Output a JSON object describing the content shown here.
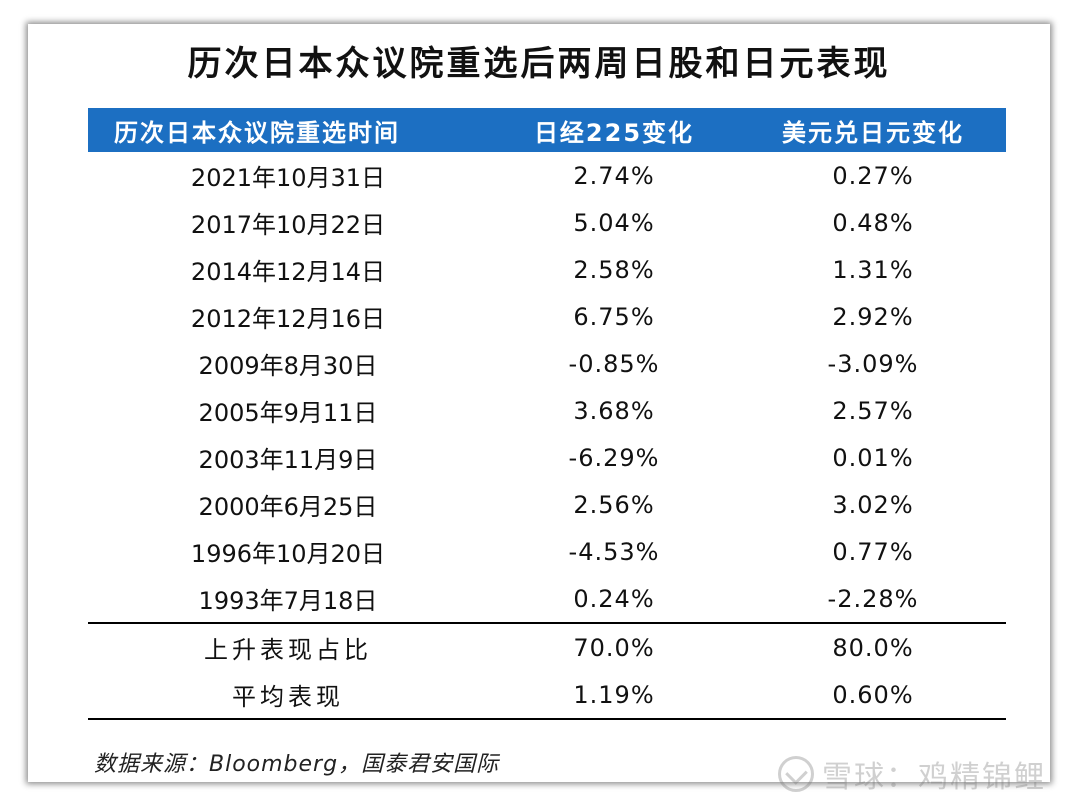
{
  "title": "历次日本众议院重选后两周日股和日元表现",
  "table": {
    "headers": [
      "历次日本众议院重选时间",
      "日经225变化",
      "美元兑日元变化"
    ],
    "rows": [
      [
        "2021年10月31日",
        "2.74%",
        "0.27%"
      ],
      [
        "2017年10月22日",
        "5.04%",
        "0.48%"
      ],
      [
        "2014年12月14日",
        "2.58%",
        "1.31%"
      ],
      [
        "2012年12月16日",
        "6.75%",
        "2.92%"
      ],
      [
        "2009年8月30日",
        "-0.85%",
        "-3.09%"
      ],
      [
        "2005年9月11日",
        "3.68%",
        "2.57%"
      ],
      [
        "2003年11月9日",
        "-6.29%",
        "0.01%"
      ],
      [
        "2000年6月25日",
        "2.56%",
        "3.02%"
      ],
      [
        "1996年10月20日",
        "-4.53%",
        "0.77%"
      ],
      [
        "1993年7月18日",
        "0.24%",
        "-2.28%"
      ]
    ],
    "summary": [
      [
        "上升表现占比",
        "70.0%",
        "80.0%"
      ],
      [
        "平均表现",
        "1.19%",
        "0.60%"
      ]
    ]
  },
  "source": "数据来源：Bloomberg，国泰君安国际",
  "watermark": "雪球：鸡精锦鲤",
  "colors": {
    "header_bg": "#1c6fc2",
    "header_text": "#ffffff"
  }
}
